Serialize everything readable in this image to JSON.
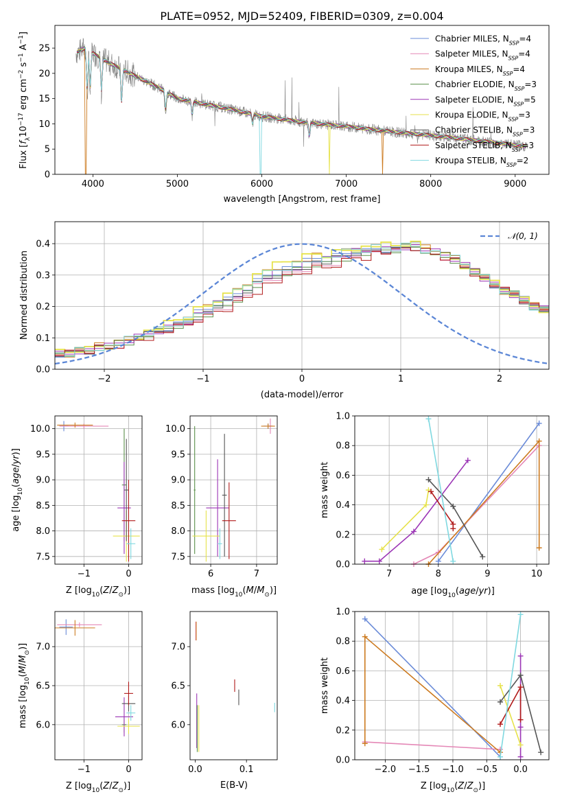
{
  "title": "PLATE=0952, MJD=52409, FIBERID=0309, z=0.004",
  "colors": {
    "Chabrier MILES": "#6a8bd8",
    "Salpeter MILES": "#e487b6",
    "Kroupa MILES": "#cc7a1f",
    "Chabrier ELODIE": "#5a8f4a",
    "Salpeter ELODIE": "#9b34b5",
    "Kroupa ELODIE": "#e6e24a",
    "Chabrier STELIB": "#555555",
    "Salpeter STELIB": "#b01818",
    "Kroupa STELIB": "#7fd8e0",
    "normal": "#5b86d6"
  },
  "chart_data": [
    {
      "type": "line",
      "id": "spectrum",
      "title": "PLATE=0952, MJD=52409, FIBERID=0309, z=0.004",
      "xlabel": "wavelength [Angstrom, rest frame]",
      "ylabel": "Flux [f_λ 10^-17 erg cm^-2 s^-1 A^-1]",
      "xlim": [
        3550,
        9400
      ],
      "ylim": [
        0,
        29.5
      ],
      "xticks": [
        4000,
        5000,
        6000,
        7000,
        8000,
        9000
      ],
      "yticks": [
        0,
        5,
        10,
        15,
        20,
        25
      ],
      "grid": false,
      "legend": "top-right",
      "legend_entries": [
        {
          "name": "Chabrier MILES",
          "nssp": "4"
        },
        {
          "name": "Salpeter MILES",
          "nssp": "4"
        },
        {
          "name": "Kroupa MILES",
          "nssp": "4"
        },
        {
          "name": "Chabrier ELODIE",
          "nssp": "3"
        },
        {
          "name": "Salpeter ELODIE",
          "nssp": "5"
        },
        {
          "name": "Kroupa ELODIE",
          "nssp": "3"
        },
        {
          "name": "Chabrier STELIB",
          "nssp": "3"
        },
        {
          "name": "Salpeter STELIB",
          "nssp": "3"
        },
        {
          "name": "Kroupa STELIB",
          "nssp": "2"
        }
      ],
      "continuum": {
        "x": [
          3800,
          3900,
          4000,
          4200,
          4500,
          4800,
          5000,
          5300,
          5600,
          6000,
          6500,
          7000,
          7500,
          8000,
          8500,
          9100
        ],
        "y": [
          24,
          25,
          24,
          22,
          19.5,
          17,
          15,
          14,
          13,
          11.5,
          10.3,
          9.5,
          8.5,
          7.7,
          6.8,
          5.6
        ]
      },
      "absorption_dips": [
        {
          "x": 3933,
          "depth": 9
        },
        {
          "x": 3968,
          "depth": 8
        },
        {
          "x": 4101,
          "depth": 7
        },
        {
          "x": 4340,
          "depth": 7
        },
        {
          "x": 4861,
          "depth": 4
        },
        {
          "x": 5175,
          "depth": 3
        },
        {
          "x": 5890,
          "depth": 2
        },
        {
          "x": 6563,
          "depth": 3
        }
      ],
      "model_drops": [
        {
          "series": "Kroupa MILES",
          "x": 3915
        },
        {
          "series": "Kroupa STELIB",
          "x": 5985
        },
        {
          "series": "Kroupa ELODIE",
          "x": 6800
        },
        {
          "series": "Kroupa MILES",
          "x": 7430
        }
      ]
    },
    {
      "type": "step",
      "id": "residual_hist",
      "xlabel": "(data-model)/error",
      "ylabel": "Normed distribution",
      "xlim": [
        -2.5,
        2.5
      ],
      "ylim": [
        0,
        0.47
      ],
      "xticks": [
        -2,
        -1,
        0,
        1,
        2
      ],
      "yticks": [
        0.0,
        0.1,
        0.2,
        0.3,
        0.4
      ],
      "grid": true,
      "legend": "top-right",
      "normal_label": "𝒩(0, 1)",
      "bin_edges_start": -2.5,
      "bin_width": 0.1,
      "base_profile": [
        0.05,
        0.05,
        0.06,
        0.06,
        0.07,
        0.07,
        0.08,
        0.09,
        0.1,
        0.11,
        0.12,
        0.13,
        0.14,
        0.15,
        0.17,
        0.18,
        0.2,
        0.21,
        0.23,
        0.25,
        0.27,
        0.29,
        0.3,
        0.31,
        0.32,
        0.33,
        0.34,
        0.34,
        0.35,
        0.36,
        0.37,
        0.37,
        0.38,
        0.38,
        0.38,
        0.39,
        0.39,
        0.38,
        0.37,
        0.36,
        0.35,
        0.33,
        0.31,
        0.29,
        0.27,
        0.25,
        0.24,
        0.22,
        0.2,
        0.19,
        0.18,
        0.17,
        0.15,
        0.14,
        0.13,
        0.12,
        0.11,
        0.1,
        0.09,
        0.08,
        0.07,
        0.06,
        0.06,
        0.05,
        0.05,
        0.04,
        0.04,
        0.03,
        0.03,
        0.03
      ],
      "series_offsets": {
        "Chabrier MILES": 0.012,
        "Salpeter MILES": -0.01,
        "Kroupa MILES": 0.02,
        "Chabrier ELODIE": -0.005,
        "Salpeter ELODIE": 0.008,
        "Kroupa ELODIE": 0.03,
        "Chabrier STELIB": 0.0,
        "Salpeter STELIB": -0.02,
        "Kroupa STELIB": 0.015
      }
    },
    {
      "type": "errorbar",
      "id": "age_vs_Z",
      "xlabel": "Z [log10(Z/Z⊙)]",
      "ylabel": "age [log10(age/yr)]",
      "xlim": [
        -1.65,
        0.3
      ],
      "ylim": [
        7.35,
        10.25
      ],
      "xticks": [
        -1,
        0
      ],
      "yticks": [
        7.5,
        8.0,
        8.5,
        9.0,
        9.5,
        10.0
      ],
      "grid": true,
      "points": [
        {
          "series": "Chabrier MILES",
          "x": -1.45,
          "y": 10.05,
          "xerr": 0.1,
          "yerr": 0.1
        },
        {
          "series": "Salpeter MILES",
          "x": -1.0,
          "y": 10.05,
          "xerr": 0.55,
          "yerr": 0.05
        },
        {
          "series": "Kroupa MILES",
          "x": -1.2,
          "y": 10.07,
          "xerr": 0.4,
          "yerr": 0.05
        },
        {
          "series": "Chabrier ELODIE",
          "x": -0.1,
          "y": 8.9,
          "xerr": 0.05,
          "yerr": 1.1
        },
        {
          "series": "Salpeter ELODIE",
          "x": -0.1,
          "y": 8.45,
          "xerr": 0.15,
          "yerr": 0.9
        },
        {
          "series": "Kroupa ELODIE",
          "x": -0.05,
          "y": 7.9,
          "xerr": 0.3,
          "yerr": 0.5
        },
        {
          "series": "Chabrier STELIB",
          "x": -0.05,
          "y": 8.8,
          "xerr": 0.05,
          "yerr": 1.0
        },
        {
          "series": "Salpeter STELIB",
          "x": 0.0,
          "y": 8.2,
          "xerr": 0.15,
          "yerr": 0.8
        },
        {
          "series": "Kroupa STELIB",
          "x": 0.05,
          "y": 7.75,
          "xerr": 0.1,
          "yerr": 0.3
        }
      ]
    },
    {
      "type": "errorbar",
      "id": "age_vs_mass",
      "xlabel": "mass [log10(M/M⊙)]",
      "ylabel": "",
      "xlim": [
        5.55,
        7.45
      ],
      "ylim": [
        7.35,
        10.25
      ],
      "xticks": [
        6,
        7
      ],
      "yticks": [
        7.5,
        8.0,
        8.5,
        9.0,
        9.5,
        10.0
      ],
      "grid": true,
      "points": [
        {
          "series": "Chabrier MILES",
          "x": 7.25,
          "y": 10.05,
          "xerr": 0.1,
          "yerr": 0.05
        },
        {
          "series": "Salpeter MILES",
          "x": 7.3,
          "y": 10.05,
          "xerr": 0.05,
          "yerr": 0.15
        },
        {
          "series": "Kroupa MILES",
          "x": 7.25,
          "y": 10.05,
          "xerr": 0.15,
          "yerr": 0.05
        },
        {
          "series": "Chabrier ELODIE",
          "x": 5.65,
          "y": 8.8,
          "xerr": 0.02,
          "yerr": 1.25
        },
        {
          "series": "Salpeter ELODIE",
          "x": 6.15,
          "y": 8.45,
          "xerr": 0.25,
          "yerr": 0.95
        },
        {
          "series": "Kroupa ELODIE",
          "x": 5.9,
          "y": 7.9,
          "xerr": 0.3,
          "yerr": 0.5
        },
        {
          "series": "Chabrier STELIB",
          "x": 6.3,
          "y": 8.7,
          "xerr": 0.05,
          "yerr": 1.2
        },
        {
          "series": "Salpeter STELIB",
          "x": 6.4,
          "y": 8.2,
          "xerr": 0.15,
          "yerr": 0.75
        },
        {
          "series": "Kroupa STELIB",
          "x": 6.2,
          "y": 7.75,
          "xerr": 0.05,
          "yerr": 0.3
        }
      ]
    },
    {
      "type": "scatter-line",
      "id": "massweight_vs_age",
      "xlabel": "age [log10(age/yr)]",
      "ylabel": "mass weight",
      "xlim": [
        6.3,
        10.25
      ],
      "ylim": [
        0,
        1.0
      ],
      "xticks": [
        7,
        8,
        9,
        10
      ],
      "yticks": [
        0.0,
        0.2,
        0.4,
        0.6,
        0.8,
        1.0
      ],
      "grid": true,
      "series": [
        {
          "name": "Chabrier MILES",
          "x": [
            8.0,
            10.05
          ],
          "y": [
            0.02,
            0.95
          ]
        },
        {
          "name": "Salpeter MILES",
          "x": [
            7.5,
            8.0,
            10.05
          ],
          "y": [
            0.0,
            0.08,
            0.8
          ]
        },
        {
          "name": "Kroupa MILES",
          "x": [
            7.8,
            10.05,
            10.05
          ],
          "y": [
            0.0,
            0.83,
            0.11
          ]
        },
        {
          "name": "Salpeter ELODIE",
          "x": [
            6.5,
            6.8,
            7.5,
            8.6
          ],
          "y": [
            0.02,
            0.02,
            0.22,
            0.7
          ]
        },
        {
          "name": "Kroupa ELODIE",
          "x": [
            6.85,
            7.75,
            7.8
          ],
          "y": [
            0.1,
            0.4,
            0.5
          ]
        },
        {
          "name": "Chabrier STELIB",
          "x": [
            7.8,
            8.3,
            8.9
          ],
          "y": [
            0.57,
            0.39,
            0.05
          ]
        },
        {
          "name": "Salpeter STELIB",
          "x": [
            7.85,
            8.3,
            8.3
          ],
          "y": [
            0.49,
            0.27,
            0.24
          ]
        },
        {
          "name": "Kroupa STELIB",
          "x": [
            7.8,
            8.3
          ],
          "y": [
            0.98,
            0.02
          ]
        }
      ]
    },
    {
      "type": "errorbar",
      "id": "mass_vs_Z",
      "xlabel": "Z [log10(Z/Z⊙)]",
      "ylabel": "mass [log10(M/M⊙)]",
      "xlim": [
        -1.65,
        0.3
      ],
      "ylim": [
        5.55,
        7.45
      ],
      "xticks": [
        -1,
        0
      ],
      "yticks": [
        6.0,
        6.5,
        7.0
      ],
      "grid": true,
      "points": [
        {
          "series": "Chabrier MILES",
          "x": -1.4,
          "y": 7.25,
          "xerr": 0.15,
          "yerr": 0.1
        },
        {
          "series": "Salpeter MILES",
          "x": -1.1,
          "y": 7.28,
          "xerr": 0.5,
          "yerr": 0.03
        },
        {
          "series": "Kroupa MILES",
          "x": -1.2,
          "y": 7.24,
          "xerr": 0.45,
          "yerr": 0.1
        },
        {
          "series": "Chabrier ELODIE",
          "x": -0.1,
          "y": 6.0,
          "xerr": 0.05,
          "yerr": 0.1
        },
        {
          "series": "Salpeter ELODIE",
          "x": -0.1,
          "y": 6.1,
          "xerr": 0.2,
          "yerr": 0.25
        },
        {
          "series": "Kroupa ELODIE",
          "x": 0.0,
          "y": 5.98,
          "xerr": 0.25,
          "yerr": 0.1
        },
        {
          "series": "Chabrier STELIB",
          "x": 0.0,
          "y": 6.27,
          "xerr": 0.15,
          "yerr": 0.1
        },
        {
          "series": "Salpeter STELIB",
          "x": 0.0,
          "y": 6.4,
          "xerr": 0.1,
          "yerr": 0.15
        },
        {
          "series": "Kroupa STELIB",
          "x": 0.05,
          "y": 6.15,
          "xerr": 0.1,
          "yerr": 0.1
        }
      ]
    },
    {
      "type": "errorbar",
      "id": "mass_vs_EBV",
      "xlabel": "E(B-V)",
      "ylabel": "",
      "xlim": [
        -0.01,
        0.16
      ],
      "ylim": [
        5.55,
        7.45
      ],
      "xticks": [
        0.0,
        0.1
      ],
      "yticks": [
        6.0,
        6.5,
        7.0
      ],
      "grid": false,
      "points": [
        {
          "series": "Salpeter MILES",
          "x": 0.001,
          "y": 7.2,
          "xerr": 0,
          "yerr": 0.12
        },
        {
          "series": "Kroupa MILES",
          "x": 0.002,
          "y": 7.2,
          "xerr": 0,
          "yerr": 0.12
        },
        {
          "series": "Salpeter ELODIE",
          "x": 0.003,
          "y": 6.05,
          "xerr": 0,
          "yerr": 0.35
        },
        {
          "series": "Chabrier ELODIE",
          "x": 0.004,
          "y": 5.95,
          "xerr": 0,
          "yerr": 0.3
        },
        {
          "series": "Kroupa ELODIE",
          "x": 0.007,
          "y": 5.95,
          "xerr": 0,
          "yerr": 0.3
        },
        {
          "series": "Salpeter STELIB",
          "x": 0.077,
          "y": 6.5,
          "xerr": 0,
          "yerr": 0.08
        },
        {
          "series": "Chabrier STELIB",
          "x": 0.085,
          "y": 6.35,
          "xerr": 0,
          "yerr": 0.1
        },
        {
          "series": "Kroupa STELIB",
          "x": 0.155,
          "y": 6.22,
          "xerr": 0,
          "yerr": 0.06
        }
      ]
    },
    {
      "type": "scatter-line",
      "id": "massweight_vs_Z",
      "xlabel": "Z [log10(Z/Z⊙)]",
      "ylabel": "mass weight",
      "xlim": [
        -2.45,
        0.42
      ],
      "ylim": [
        0,
        1.0
      ],
      "xticks": [
        -2.0,
        -1.5,
        -1.0,
        -0.5,
        0.0
      ],
      "yticks": [
        0.0,
        0.2,
        0.4,
        0.6,
        0.8,
        1.0
      ],
      "grid": true,
      "series": [
        {
          "name": "Chabrier MILES",
          "x": [
            -2.3,
            -0.3
          ],
          "y": [
            0.95,
            0.02
          ]
        },
        {
          "name": "Salpeter MILES",
          "x": [
            -2.3,
            -0.3
          ],
          "y": [
            0.12,
            0.07
          ]
        },
        {
          "name": "Kroupa MILES",
          "x": [
            -2.3,
            -2.3,
            -0.3
          ],
          "y": [
            0.11,
            0.83,
            0.05
          ]
        },
        {
          "name": "Salpeter ELODIE",
          "x": [
            0.0,
            0.0,
            0.0
          ],
          "y": [
            0.02,
            0.22,
            0.7
          ]
        },
        {
          "name": "Kroupa ELODIE",
          "x": [
            -0.3,
            0.0
          ],
          "y": [
            0.5,
            0.1
          ]
        },
        {
          "name": "Chabrier STELIB",
          "x": [
            -0.3,
            0.0,
            0.3
          ],
          "y": [
            0.39,
            0.57,
            0.05
          ]
        },
        {
          "name": "Salpeter STELIB",
          "x": [
            -0.3,
            0.0,
            0.0
          ],
          "y": [
            0.24,
            0.49,
            0.27
          ]
        },
        {
          "name": "Kroupa STELIB",
          "x": [
            -0.3,
            0.0
          ],
          "y": [
            0.02,
            0.98
          ]
        }
      ]
    }
  ]
}
